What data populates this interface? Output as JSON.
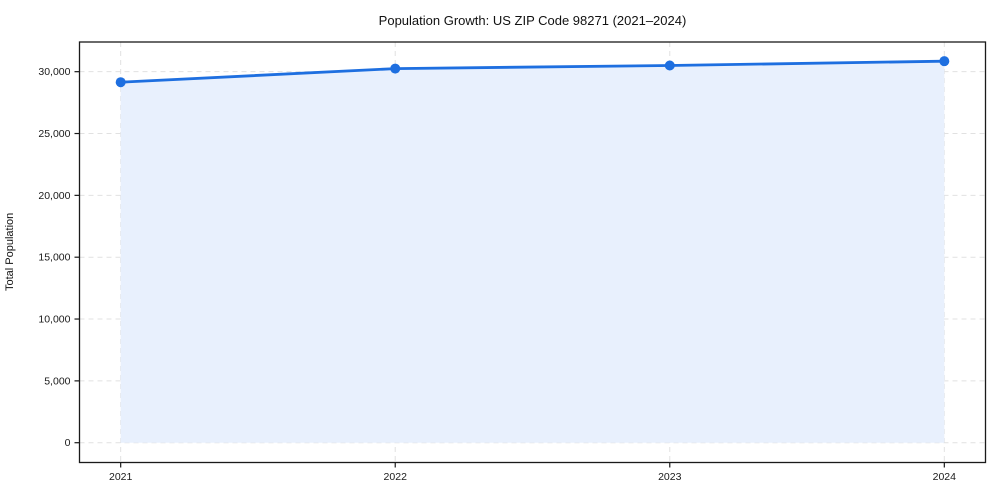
{
  "figure": {
    "background": "#ffffff"
  },
  "chart_data": {
    "type": "area",
    "title": "Population Growth: US ZIP Code 98271 (2021–2024)",
    "xlabel": "",
    "ylabel": "Total Population",
    "x": [
      2021,
      2022,
      2023,
      2024
    ],
    "x_tick_labels": [
      "2021",
      "2022",
      "2023",
      "2024"
    ],
    "series": [
      {
        "name": "Total Population",
        "values": [
          29150,
          30250,
          30500,
          30850
        ]
      }
    ],
    "fill_baseline": 0,
    "y_ticks": [
      0,
      5000,
      10000,
      15000,
      20000,
      25000,
      30000
    ],
    "y_tick_labels": [
      "0",
      "5,000",
      "10,000",
      "15,000",
      "20,000",
      "25,000",
      "30,000"
    ],
    "xlim": [
      2020.85,
      2024.15
    ],
    "ylim": [
      -1600,
      32400
    ],
    "grid": true,
    "grid_style": "dashed",
    "legend": "none",
    "colors": {
      "line": "#1e6fe0",
      "marker": "#1e6fe0",
      "fill": "#e8f0fd",
      "grid": "#d8d8d8",
      "spine": "#1a1a1a",
      "tick_text": "#1a1a1a"
    }
  }
}
